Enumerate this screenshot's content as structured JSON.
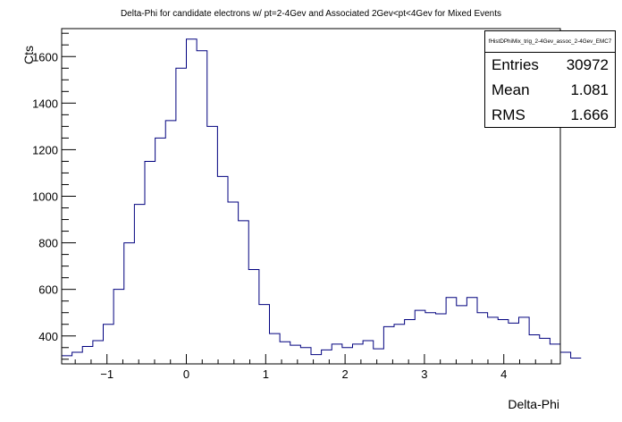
{
  "chart_data": {
    "type": "histogram",
    "title": "Delta-Phi for candidate electrons w/ pt=2-4Gev and Associated 2Gev<pt<4Gev for Mixed Events",
    "xlabel": "Delta-Phi",
    "ylabel": "Cts",
    "xlim": [
      -1.5708,
      4.7124
    ],
    "ylim": [
      280,
      1720
    ],
    "xticks": [
      -1,
      0,
      1,
      2,
      3,
      4
    ],
    "yticks": [
      400,
      600,
      800,
      1000,
      1200,
      1400,
      1600
    ],
    "bin_width": 0.1309,
    "values": [
      315,
      330,
      355,
      380,
      450,
      600,
      800,
      965,
      1150,
      1250,
      1325,
      1550,
      1675,
      1625,
      1300,
      1085,
      975,
      895,
      685,
      535,
      410,
      375,
      360,
      350,
      320,
      340,
      365,
      350,
      365,
      380,
      345,
      440,
      450,
      470,
      510,
      500,
      495,
      565,
      530,
      565,
      500,
      480,
      470,
      455,
      480,
      405,
      390,
      365,
      330,
      305
    ],
    "line_color": "#00007f",
    "grid": false,
    "stats": {
      "name": "fHistDPhiMix_trig_2-4Gev_assoc_2-4Gev_EMC7",
      "rows": [
        {
          "label": "Entries",
          "value": "30972"
        },
        {
          "label": "Mean",
          "value": "1.081"
        },
        {
          "label": "RMS",
          "value": "1.666"
        }
      ]
    }
  }
}
